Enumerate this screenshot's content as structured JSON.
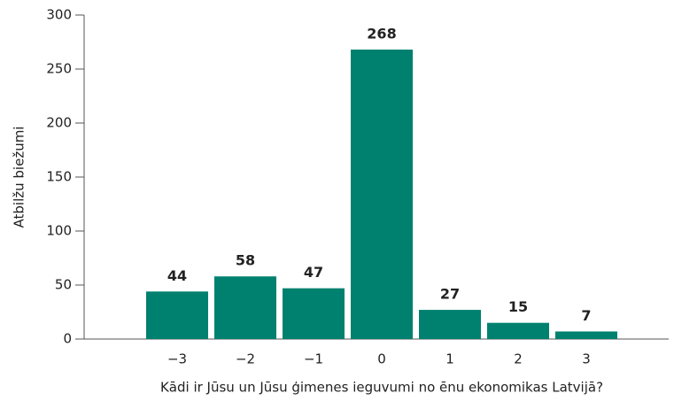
{
  "chart_data": {
    "type": "bar",
    "categories": [
      "−3",
      "−2",
      "−1",
      "0",
      "1",
      "2",
      "3"
    ],
    "values": [
      44,
      58,
      47,
      268,
      27,
      15,
      7
    ],
    "color": "#00806e",
    "x_label": "Kādi ir Jūsu un Jūsu ģimenes ieguvumi no ēnu ekonomikas Latvijā?",
    "y_label": "Atbilžu biežumi",
    "ylim": [
      0,
      300
    ],
    "yticks": [
      0,
      50,
      100,
      150,
      200,
      250,
      300
    ],
    "grid": false
  }
}
